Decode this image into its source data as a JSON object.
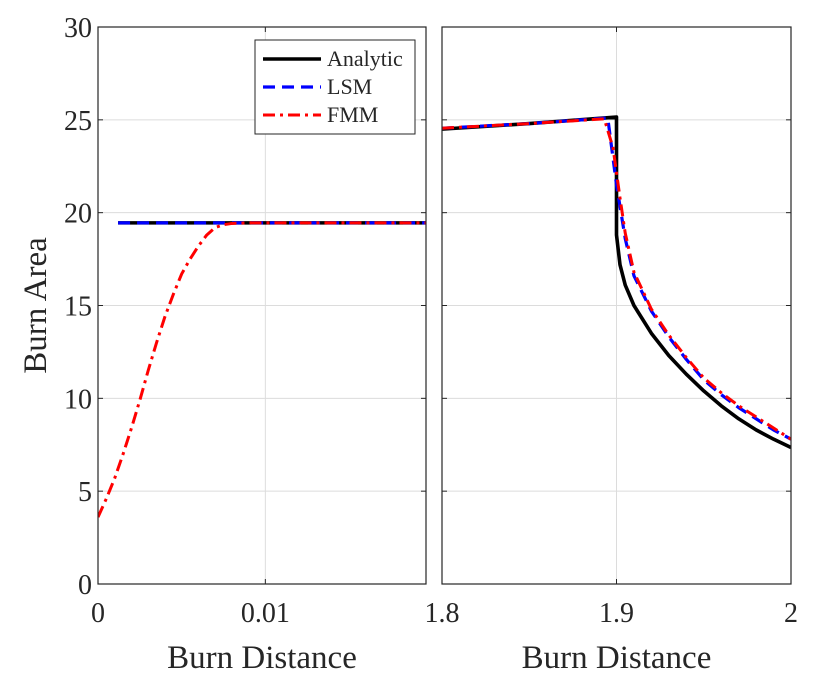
{
  "chart_data": [
    {
      "type": "line",
      "ylabel": "Burn Area",
      "xlabel": "Burn Distance",
      "xlim": [
        0,
        0.0196
      ],
      "ylim": [
        0,
        30
      ],
      "xticks": [
        0,
        0.01
      ],
      "xtick_labels": [
        "0",
        "0.01"
      ],
      "yticks": [
        0,
        5,
        10,
        15,
        20,
        25,
        30
      ],
      "ytick_labels": [
        "0",
        "5",
        "10",
        "15",
        "20",
        "25",
        "30"
      ],
      "grid": true,
      "legend": {
        "placement": "top-right",
        "entries": [
          {
            "label": "Analytic",
            "color": "#000000",
            "style": "solid"
          },
          {
            "label": "LSM",
            "color": "#0000ff",
            "style": "dashed"
          },
          {
            "label": "FMM",
            "color": "#ff0000",
            "style": "dashdot"
          }
        ]
      },
      "series": [
        {
          "name": "Analytic",
          "color": "#000000",
          "style": "solid",
          "x": [
            0.0012,
            0.0196
          ],
          "y": [
            19.45,
            19.45
          ]
        },
        {
          "name": "LSM",
          "color": "#0000ff",
          "style": "dashed",
          "x": [
            0.0012,
            0.0196
          ],
          "y": [
            19.45,
            19.45
          ]
        },
        {
          "name": "FMM",
          "color": "#ff0000",
          "style": "dashdot",
          "x": [
            0.0,
            0.0005,
            0.001,
            0.0015,
            0.002,
            0.0025,
            0.003,
            0.0035,
            0.004,
            0.0045,
            0.005,
            0.0055,
            0.006,
            0.0065,
            0.007,
            0.0075,
            0.008,
            0.009,
            0.01,
            0.012,
            0.015,
            0.0196
          ],
          "y": [
            3.6,
            4.6,
            5.7,
            7.0,
            8.4,
            9.9,
            11.5,
            13.0,
            14.4,
            15.6,
            16.7,
            17.5,
            18.2,
            18.8,
            19.2,
            19.35,
            19.42,
            19.45,
            19.45,
            19.45,
            19.45,
            19.45
          ]
        }
      ]
    },
    {
      "type": "line",
      "xlabel": "Burn Distance",
      "xlim": [
        1.8,
        2.0
      ],
      "ylim": [
        0,
        30
      ],
      "xticks": [
        1.8,
        1.9,
        2.0
      ],
      "xtick_labels": [
        "1.8",
        "1.9",
        "2"
      ],
      "yticks": [
        0,
        5,
        10,
        15,
        20,
        25,
        30
      ],
      "grid": true,
      "series": [
        {
          "name": "Analytic",
          "color": "#000000",
          "style": "solid",
          "x": [
            1.8,
            1.85,
            1.9,
            1.9,
            1.9,
            1.902,
            1.905,
            1.91,
            1.92,
            1.93,
            1.94,
            1.95,
            1.96,
            1.97,
            1.98,
            1.99,
            2.0
          ],
          "y": [
            24.5,
            24.8,
            25.15,
            22.0,
            18.8,
            17.2,
            16.1,
            15.0,
            13.5,
            12.3,
            11.3,
            10.4,
            9.6,
            8.9,
            8.3,
            7.8,
            7.35
          ]
        },
        {
          "name": "LSM",
          "color": "#0000ff",
          "style": "dashed",
          "x": [
            1.8,
            1.85,
            1.895,
            1.9,
            1.905,
            1.91,
            1.92,
            1.93,
            1.94,
            1.95,
            1.96,
            1.97,
            1.98,
            1.99,
            2.0
          ],
          "y": [
            24.55,
            24.8,
            25.1,
            21.5,
            18.6,
            16.6,
            14.7,
            13.3,
            12.1,
            11.0,
            10.2,
            9.5,
            8.9,
            8.3,
            7.8
          ]
        },
        {
          "name": "FMM",
          "color": "#ff0000",
          "style": "dashdot",
          "x": [
            1.8,
            1.85,
            1.893,
            1.898,
            1.902,
            1.905,
            1.91,
            1.92,
            1.93,
            1.94,
            1.95,
            1.96,
            1.97,
            1.98,
            1.99,
            2.0
          ],
          "y": [
            24.55,
            24.8,
            25.05,
            23.5,
            20.8,
            18.9,
            16.8,
            14.8,
            13.4,
            12.2,
            11.1,
            10.3,
            9.6,
            9.0,
            8.4,
            7.8
          ]
        }
      ]
    }
  ]
}
